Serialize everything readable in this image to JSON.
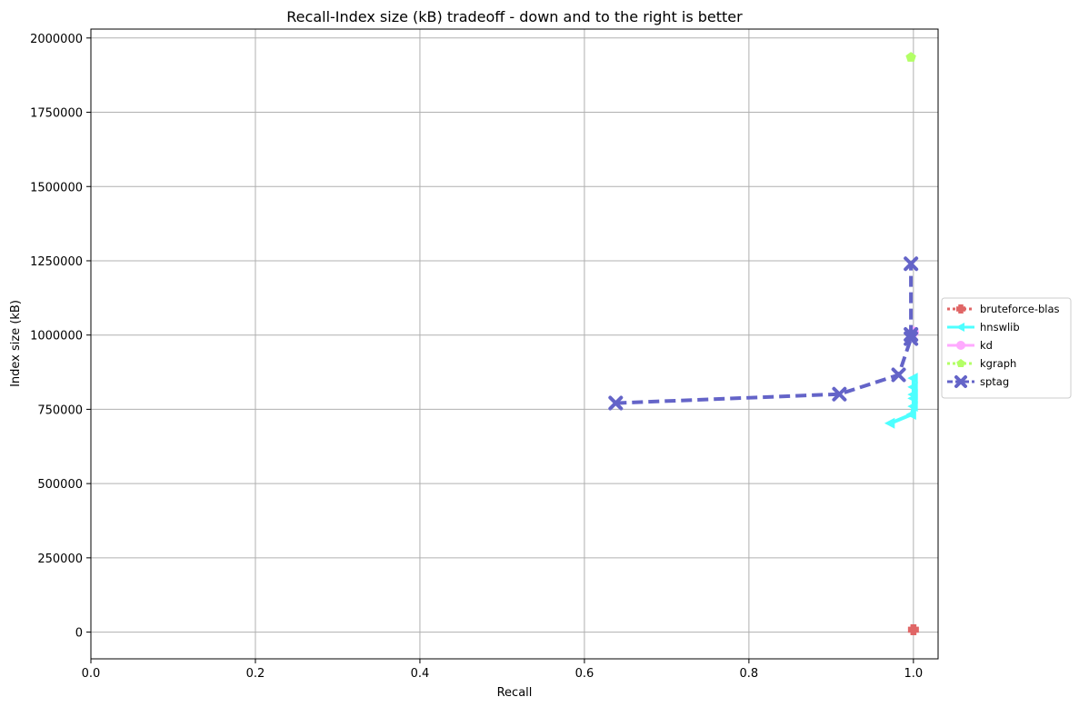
{
  "chart_data": {
    "type": "line",
    "title": "Recall-Index size (kB) tradeoff - down and to the right is better",
    "xlabel": "Recall",
    "ylabel": "Index size (kB)",
    "xlim": [
      0,
      1.03
    ],
    "ylim": [
      -90000,
      2030000
    ],
    "xticks": [
      0,
      0.2,
      0.4,
      0.6,
      0.8,
      1.0
    ],
    "xtick_labels": [
      "0.0",
      "0.2",
      "0.4",
      "0.6",
      "0.8",
      "1.0"
    ],
    "yticks": [
      0,
      250000,
      500000,
      750000,
      1000000,
      1250000,
      1500000,
      1750000,
      2000000
    ],
    "ytick_labels": [
      "0",
      "250000",
      "500000",
      "750000",
      "1000000",
      "1250000",
      "1500000",
      "1750000",
      "2000000"
    ],
    "grid": true,
    "legend_position": "outside-right",
    "series": [
      {
        "name": "bruteforce-blas",
        "color": "#e06666",
        "marker": "plus",
        "dash": "dotted",
        "x": [
          1.0
        ],
        "y": [
          8000
        ]
      },
      {
        "name": "hnswlib",
        "color": "#4dffff",
        "marker": "triangle-left",
        "dash": "solid",
        "x": [
          0.972,
          0.998,
          1.0,
          1.0,
          1.0,
          1.0,
          1.0
        ],
        "y": [
          703000,
          733000,
          760000,
          787000,
          800000,
          825000,
          855000
        ]
      },
      {
        "name": "kd",
        "color": "#ffaaff",
        "marker": "circle",
        "dash": "solid",
        "x": [
          1.0
        ],
        "y": [
          1010000
        ]
      },
      {
        "name": "kgraph",
        "color": "#b3ff66",
        "marker": "pentagon",
        "dash": "dotted",
        "x": [
          0.997
        ],
        "y": [
          1935000
        ]
      },
      {
        "name": "sptag",
        "color": "#6464c8",
        "marker": "x",
        "dash": "dashed",
        "x": [
          0.638,
          0.91,
          0.982,
          0.997,
          0.997,
          0.997
        ],
        "y": [
          771000,
          801000,
          866000,
          988000,
          1002000,
          1240000
        ]
      }
    ]
  }
}
